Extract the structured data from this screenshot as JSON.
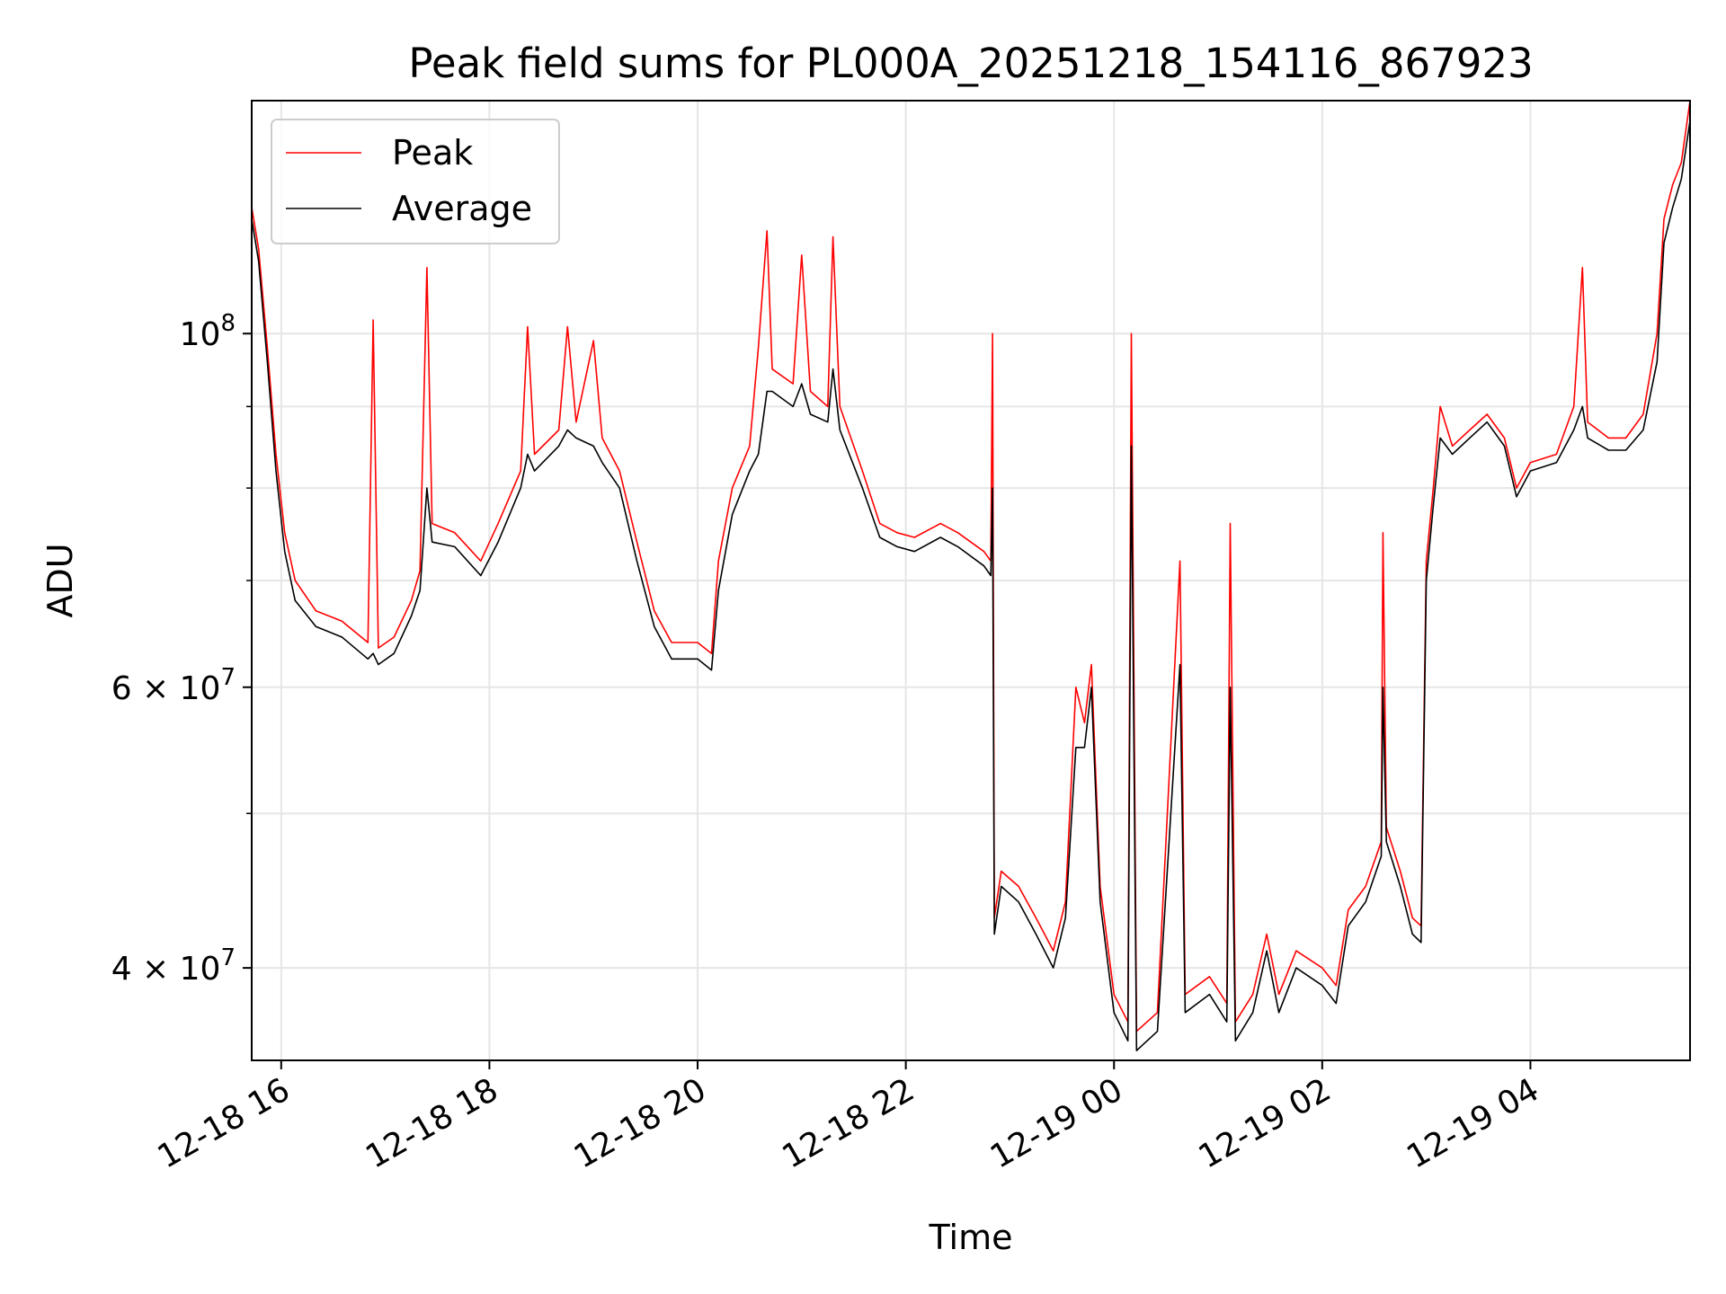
{
  "chart_data": {
    "type": "line",
    "title": "Peak field sums for PL000A_20251218_154116_867923",
    "xlabel": "Time",
    "ylabel": "ADU",
    "yscale": "log",
    "ylim": [
      35000000,
      140000000
    ],
    "xlim": [
      "2025-12-18 15:43",
      "2025-12-19 05:32"
    ],
    "grid": true,
    "legend_placement": "upper-left",
    "x_ticks": [
      {
        "t": "2025-12-18 16:00",
        "label": "12-18 16"
      },
      {
        "t": "2025-12-18 18:00",
        "label": "12-18 18"
      },
      {
        "t": "2025-12-18 20:00",
        "label": "12-18 20"
      },
      {
        "t": "2025-12-18 22:00",
        "label": "12-18 22"
      },
      {
        "t": "2025-12-19 00:00",
        "label": "12-19 00"
      },
      {
        "t": "2025-12-19 02:00",
        "label": "12-19 02"
      },
      {
        "t": "2025-12-19 04:00",
        "label": "12-19 04"
      }
    ],
    "y_ticks_major": [
      {
        "v": 40000000,
        "mant": "4",
        "exp": "7"
      },
      {
        "v": 60000000,
        "mant": "6",
        "exp": "7"
      },
      {
        "v": 100000000,
        "mant": "10",
        "exp": "8"
      }
    ],
    "y_ticks_minor": [
      50000000,
      70000000,
      80000000,
      90000000
    ],
    "series": [
      {
        "name": "Peak",
        "color": "#ff0000",
        "points": [
          [
            "2025-12-18 15:43",
            120000000
          ],
          [
            "2025-12-18 15:47",
            113000000
          ],
          [
            "2025-12-18 15:52",
            98000000
          ],
          [
            "2025-12-18 15:57",
            84000000
          ],
          [
            "2025-12-18 16:02",
            75000000
          ],
          [
            "2025-12-18 16:08",
            70000000
          ],
          [
            "2025-12-18 16:20",
            67000000
          ],
          [
            "2025-12-18 16:35",
            66000000
          ],
          [
            "2025-12-18 16:50",
            64000000
          ],
          [
            "2025-12-18 16:53",
            102000000
          ],
          [
            "2025-12-18 16:56",
            63500000
          ],
          [
            "2025-12-18 17:05",
            64500000
          ],
          [
            "2025-12-18 17:15",
            68000000
          ],
          [
            "2025-12-18 17:20",
            71000000
          ],
          [
            "2025-12-18 17:24",
            110000000
          ],
          [
            "2025-12-18 17:27",
            76000000
          ],
          [
            "2025-12-18 17:40",
            75000000
          ],
          [
            "2025-12-18 17:55",
            72000000
          ],
          [
            "2025-12-18 18:05",
            76000000
          ],
          [
            "2025-12-18 18:18",
            82000000
          ],
          [
            "2025-12-18 18:22",
            101000000
          ],
          [
            "2025-12-18 18:26",
            84000000
          ],
          [
            "2025-12-18 18:40",
            87000000
          ],
          [
            "2025-12-18 18:45",
            101000000
          ],
          [
            "2025-12-18 18:50",
            88000000
          ],
          [
            "2025-12-18 19:00",
            99000000
          ],
          [
            "2025-12-18 19:05",
            86000000
          ],
          [
            "2025-12-18 19:15",
            82000000
          ],
          [
            "2025-12-18 19:25",
            74000000
          ],
          [
            "2025-12-18 19:35",
            67000000
          ],
          [
            "2025-12-18 19:45",
            64000000
          ],
          [
            "2025-12-18 20:00",
            64000000
          ],
          [
            "2025-12-18 20:08",
            63000000
          ],
          [
            "2025-12-18 20:12",
            72000000
          ],
          [
            "2025-12-18 20:20",
            80000000
          ],
          [
            "2025-12-18 20:30",
            85000000
          ],
          [
            "2025-12-18 20:35",
            98000000
          ],
          [
            "2025-12-18 20:40",
            116000000
          ],
          [
            "2025-12-18 20:43",
            95000000
          ],
          [
            "2025-12-18 20:55",
            93000000
          ],
          [
            "2025-12-18 21:00",
            112000000
          ],
          [
            "2025-12-18 21:05",
            92000000
          ],
          [
            "2025-12-18 21:15",
            90000000
          ],
          [
            "2025-12-18 21:18",
            115000000
          ],
          [
            "2025-12-18 21:22",
            90000000
          ],
          [
            "2025-12-18 21:35",
            82000000
          ],
          [
            "2025-12-18 21:45",
            76000000
          ],
          [
            "2025-12-18 21:55",
            75000000
          ],
          [
            "2025-12-18 22:05",
            74500000
          ],
          [
            "2025-12-18 22:20",
            76000000
          ],
          [
            "2025-12-18 22:30",
            75000000
          ],
          [
            "2025-12-18 22:45",
            73000000
          ],
          [
            "2025-12-18 22:49",
            72000000
          ],
          [
            "2025-12-18 22:50",
            100000000
          ],
          [
            "2025-12-18 22:51",
            43000000
          ],
          [
            "2025-12-18 22:55",
            46000000
          ],
          [
            "2025-12-18 23:05",
            45000000
          ],
          [
            "2025-12-18 23:15",
            43000000
          ],
          [
            "2025-12-18 23:25",
            41000000
          ],
          [
            "2025-12-18 23:32",
            44000000
          ],
          [
            "2025-12-18 23:38",
            60000000
          ],
          [
            "2025-12-18 23:43",
            57000000
          ],
          [
            "2025-12-18 23:47",
            62000000
          ],
          [
            "2025-12-18 23:52",
            45000000
          ],
          [
            "2025-12-19 00:00",
            38500000
          ],
          [
            "2025-12-19 00:08",
            37000000
          ],
          [
            "2025-12-19 00:10",
            100000000
          ],
          [
            "2025-12-19 00:13",
            36500000
          ],
          [
            "2025-12-19 00:25",
            37500000
          ],
          [
            "2025-12-19 00:38",
            72000000
          ],
          [
            "2025-12-19 00:41",
            38500000
          ],
          [
            "2025-12-19 00:55",
            39500000
          ],
          [
            "2025-12-19 01:05",
            38000000
          ],
          [
            "2025-12-19 01:07",
            76000000
          ],
          [
            "2025-12-19 01:10",
            37000000
          ],
          [
            "2025-12-19 01:20",
            38500000
          ],
          [
            "2025-12-19 01:28",
            42000000
          ],
          [
            "2025-12-19 01:35",
            38500000
          ],
          [
            "2025-12-19 01:45",
            41000000
          ],
          [
            "2025-12-19 02:00",
            40000000
          ],
          [
            "2025-12-19 02:08",
            39000000
          ],
          [
            "2025-12-19 02:15",
            43500000
          ],
          [
            "2025-12-19 02:25",
            45000000
          ],
          [
            "2025-12-19 02:34",
            48000000
          ],
          [
            "2025-12-19 02:35",
            75000000
          ],
          [
            "2025-12-19 02:37",
            49000000
          ],
          [
            "2025-12-19 02:45",
            46000000
          ],
          [
            "2025-12-19 02:52",
            43000000
          ],
          [
            "2025-12-19 02:57",
            42500000
          ],
          [
            "2025-12-19 03:00",
            72000000
          ],
          [
            "2025-12-19 03:04",
            80000000
          ],
          [
            "2025-12-19 03:08",
            90000000
          ],
          [
            "2025-12-19 03:15",
            85000000
          ],
          [
            "2025-12-19 03:25",
            87000000
          ],
          [
            "2025-12-19 03:35",
            89000000
          ],
          [
            "2025-12-19 03:45",
            86000000
          ],
          [
            "2025-12-19 03:52",
            80000000
          ],
          [
            "2025-12-19 04:00",
            83000000
          ],
          [
            "2025-12-19 04:15",
            84000000
          ],
          [
            "2025-12-19 04:25",
            90000000
          ],
          [
            "2025-12-19 04:30",
            110000000
          ],
          [
            "2025-12-19 04:33",
            88000000
          ],
          [
            "2025-12-19 04:45",
            86000000
          ],
          [
            "2025-12-19 04:55",
            86000000
          ],
          [
            "2025-12-19 05:05",
            89000000
          ],
          [
            "2025-12-19 05:13",
            100000000
          ],
          [
            "2025-12-19 05:17",
            118000000
          ],
          [
            "2025-12-19 05:22",
            124000000
          ],
          [
            "2025-12-19 05:27",
            128000000
          ],
          [
            "2025-12-19 05:32",
            140000000
          ]
        ]
      },
      {
        "name": "Average",
        "color": "#000000",
        "points": [
          [
            "2025-12-18 15:43",
            118000000
          ],
          [
            "2025-12-18 15:47",
            111000000
          ],
          [
            "2025-12-18 15:52",
            96000000
          ],
          [
            "2025-12-18 15:57",
            82000000
          ],
          [
            "2025-12-18 16:02",
            73000000
          ],
          [
            "2025-12-18 16:08",
            68000000
          ],
          [
            "2025-12-18 16:20",
            65500000
          ],
          [
            "2025-12-18 16:35",
            64500000
          ],
          [
            "2025-12-18 16:50",
            62500000
          ],
          [
            "2025-12-18 16:53",
            63000000
          ],
          [
            "2025-12-18 16:56",
            62000000
          ],
          [
            "2025-12-18 17:05",
            63000000
          ],
          [
            "2025-12-18 17:15",
            66500000
          ],
          [
            "2025-12-18 17:20",
            69000000
          ],
          [
            "2025-12-18 17:24",
            80000000
          ],
          [
            "2025-12-18 17:27",
            74000000
          ],
          [
            "2025-12-18 17:40",
            73500000
          ],
          [
            "2025-12-18 17:55",
            70500000
          ],
          [
            "2025-12-18 18:05",
            74000000
          ],
          [
            "2025-12-18 18:18",
            80000000
          ],
          [
            "2025-12-18 18:22",
            84000000
          ],
          [
            "2025-12-18 18:26",
            82000000
          ],
          [
            "2025-12-18 18:40",
            85000000
          ],
          [
            "2025-12-18 18:45",
            87000000
          ],
          [
            "2025-12-18 18:50",
            86000000
          ],
          [
            "2025-12-18 19:00",
            85000000
          ],
          [
            "2025-12-18 19:05",
            83000000
          ],
          [
            "2025-12-18 19:15",
            80000000
          ],
          [
            "2025-12-18 19:25",
            72000000
          ],
          [
            "2025-12-18 19:35",
            65500000
          ],
          [
            "2025-12-18 19:45",
            62500000
          ],
          [
            "2025-12-18 20:00",
            62500000
          ],
          [
            "2025-12-18 20:08",
            61500000
          ],
          [
            "2025-12-18 20:12",
            69000000
          ],
          [
            "2025-12-18 20:20",
            77000000
          ],
          [
            "2025-12-18 20:30",
            82000000
          ],
          [
            "2025-12-18 20:35",
            84000000
          ],
          [
            "2025-12-18 20:40",
            92000000
          ],
          [
            "2025-12-18 20:43",
            92000000
          ],
          [
            "2025-12-18 20:55",
            90000000
          ],
          [
            "2025-12-18 21:00",
            93000000
          ],
          [
            "2025-12-18 21:05",
            89000000
          ],
          [
            "2025-12-18 21:15",
            88000000
          ],
          [
            "2025-12-18 21:18",
            95000000
          ],
          [
            "2025-12-18 21:22",
            87000000
          ],
          [
            "2025-12-18 21:35",
            80000000
          ],
          [
            "2025-12-18 21:45",
            74500000
          ],
          [
            "2025-12-18 21:55",
            73500000
          ],
          [
            "2025-12-18 22:05",
            73000000
          ],
          [
            "2025-12-18 22:20",
            74500000
          ],
          [
            "2025-12-18 22:30",
            73500000
          ],
          [
            "2025-12-18 22:45",
            71500000
          ],
          [
            "2025-12-18 22:49",
            70500000
          ],
          [
            "2025-12-18 22:50",
            80000000
          ],
          [
            "2025-12-18 22:51",
            42000000
          ],
          [
            "2025-12-18 22:55",
            45000000
          ],
          [
            "2025-12-18 23:05",
            44000000
          ],
          [
            "2025-12-18 23:15",
            42000000
          ],
          [
            "2025-12-18 23:25",
            40000000
          ],
          [
            "2025-12-18 23:32",
            43000000
          ],
          [
            "2025-12-18 23:38",
            55000000
          ],
          [
            "2025-12-18 23:43",
            55000000
          ],
          [
            "2025-12-18 23:47",
            60000000
          ],
          [
            "2025-12-18 23:52",
            44000000
          ],
          [
            "2025-12-19 00:00",
            37500000
          ],
          [
            "2025-12-19 00:08",
            36000000
          ],
          [
            "2025-12-19 00:10",
            85000000
          ],
          [
            "2025-12-19 00:13",
            35500000
          ],
          [
            "2025-12-19 00:25",
            36500000
          ],
          [
            "2025-12-19 00:38",
            62000000
          ],
          [
            "2025-12-19 00:41",
            37500000
          ],
          [
            "2025-12-19 00:55",
            38500000
          ],
          [
            "2025-12-19 01:05",
            37000000
          ],
          [
            "2025-12-19 01:07",
            60000000
          ],
          [
            "2025-12-19 01:10",
            36000000
          ],
          [
            "2025-12-19 01:20",
            37500000
          ],
          [
            "2025-12-19 01:28",
            41000000
          ],
          [
            "2025-12-19 01:35",
            37500000
          ],
          [
            "2025-12-19 01:45",
            40000000
          ],
          [
            "2025-12-19 02:00",
            39000000
          ],
          [
            "2025-12-19 02:08",
            38000000
          ],
          [
            "2025-12-19 02:15",
            42500000
          ],
          [
            "2025-12-19 02:25",
            44000000
          ],
          [
            "2025-12-19 02:34",
            47000000
          ],
          [
            "2025-12-19 02:35",
            60000000
          ],
          [
            "2025-12-19 02:37",
            48000000
          ],
          [
            "2025-12-19 02:45",
            45000000
          ],
          [
            "2025-12-19 02:52",
            42000000
          ],
          [
            "2025-12-19 02:57",
            41500000
          ],
          [
            "2025-12-19 03:00",
            70000000
          ],
          [
            "2025-12-19 03:04",
            78000000
          ],
          [
            "2025-12-19 03:08",
            86000000
          ],
          [
            "2025-12-19 03:15",
            84000000
          ],
          [
            "2025-12-19 03:25",
            86000000
          ],
          [
            "2025-12-19 03:35",
            88000000
          ],
          [
            "2025-12-19 03:45",
            85000000
          ],
          [
            "2025-12-19 03:52",
            79000000
          ],
          [
            "2025-12-19 04:00",
            82000000
          ],
          [
            "2025-12-19 04:15",
            83000000
          ],
          [
            "2025-12-19 04:25",
            87000000
          ],
          [
            "2025-12-19 04:30",
            90000000
          ],
          [
            "2025-12-19 04:33",
            86000000
          ],
          [
            "2025-12-19 04:45",
            84500000
          ],
          [
            "2025-12-19 04:55",
            84500000
          ],
          [
            "2025-12-19 05:05",
            87000000
          ],
          [
            "2025-12-19 05:13",
            96000000
          ],
          [
            "2025-12-19 05:17",
            114000000
          ],
          [
            "2025-12-19 05:22",
            120000000
          ],
          [
            "2025-12-19 05:27",
            125000000
          ],
          [
            "2025-12-19 05:32",
            136000000
          ]
        ]
      }
    ]
  }
}
